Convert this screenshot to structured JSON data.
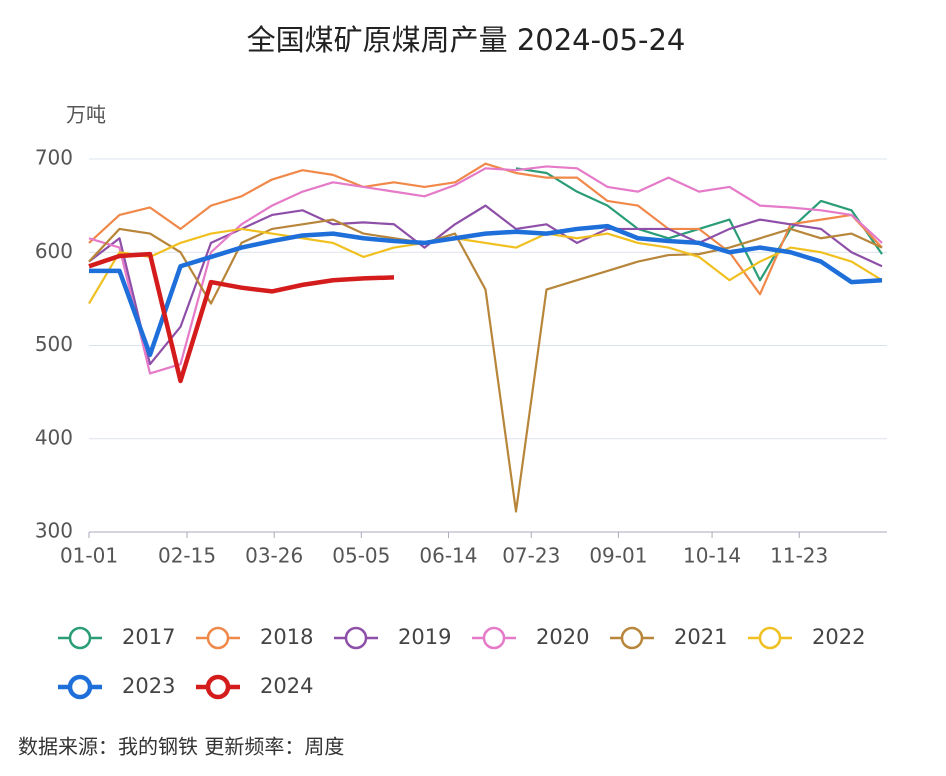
{
  "chart_data": {
    "type": "line",
    "title": "全国煤矿原煤周产量 2024-05-24",
    "y_unit": "万吨",
    "source": "数据来源：我的钢铁  更新频率：周度",
    "x": [
      0,
      14,
      28,
      42,
      56,
      70,
      84,
      98,
      112,
      126,
      140,
      154,
      168,
      182,
      196,
      210,
      224,
      238,
      252,
      266,
      280,
      294,
      308,
      322,
      336,
      350,
      364
    ],
    "xlim": [
      0,
      364
    ],
    "xticks": [
      {
        "value": 0,
        "label": "01-01"
      },
      {
        "value": 45,
        "label": "02-15"
      },
      {
        "value": 85,
        "label": "03-26"
      },
      {
        "value": 125,
        "label": "05-05"
      },
      {
        "value": 165,
        "label": "06-14"
      },
      {
        "value": 203,
        "label": "07-23"
      },
      {
        "value": 243,
        "label": "09-01"
      },
      {
        "value": 286,
        "label": "10-14"
      },
      {
        "value": 326,
        "label": "11-23"
      }
    ],
    "ylim": [
      300,
      700
    ],
    "yticks": [
      300,
      400,
      500,
      600,
      700
    ],
    "grid": true,
    "series": [
      {
        "name": "2017",
        "color": "#2a9d78",
        "values": [
          null,
          null,
          null,
          null,
          null,
          null,
          null,
          null,
          null,
          null,
          null,
          null,
          null,
          null,
          690,
          685,
          665,
          650,
          625,
          615,
          625,
          635,
          570,
          625,
          655,
          645,
          598
        ]
      },
      {
        "name": "2018",
        "color": "#f0884a",
        "values": [
          610,
          640,
          648,
          625,
          650,
          660,
          678,
          688,
          683,
          670,
          675,
          670,
          675,
          695,
          685,
          680,
          680,
          655,
          650,
          625,
          625,
          600,
          555,
          630,
          635,
          640,
          605
        ]
      },
      {
        "name": "2019",
        "color": "#8e4fa8",
        "values": [
          590,
          615,
          480,
          520,
          610,
          625,
          640,
          645,
          630,
          632,
          630,
          605,
          630,
          650,
          625,
          630,
          610,
          625,
          625,
          625,
          610,
          625,
          635,
          630,
          625,
          600,
          585
        ]
      },
      {
        "name": "2020",
        "color": "#e57ac8",
        "values": [
          615,
          605,
          470,
          480,
          600,
          630,
          650,
          665,
          675,
          670,
          665,
          660,
          672,
          690,
          688,
          692,
          690,
          670,
          665,
          680,
          665,
          670,
          650,
          648,
          645,
          640,
          610
        ]
      },
      {
        "name": "2021",
        "color": "#b8863a",
        "values": [
          590,
          625,
          620,
          600,
          545,
          610,
          625,
          630,
          635,
          620,
          615,
          610,
          620,
          560,
          322,
          560,
          570,
          580,
          590,
          597,
          598,
          605,
          615,
          625,
          615,
          620,
          605
        ]
      },
      {
        "name": "2022",
        "color": "#f0c020",
        "values": [
          545,
          600,
          595,
          610,
          620,
          625,
          620,
          615,
          610,
          595,
          605,
          610,
          615,
          610,
          605,
          620,
          615,
          620,
          610,
          605,
          595,
          570,
          590,
          605,
          600,
          590,
          570
        ]
      },
      {
        "name": "2023",
        "color": "#1e6fd9",
        "values": [
          580,
          580,
          490,
          585,
          595,
          605,
          612,
          618,
          620,
          615,
          612,
          610,
          615,
          620,
          622,
          620,
          625,
          628,
          615,
          612,
          610,
          600,
          605,
          600,
          590,
          568,
          570
        ]
      },
      {
        "name": "2024",
        "color": "#d41c1c",
        "values": [
          585,
          596,
          598,
          462,
          568,
          562,
          558,
          565,
          570,
          572,
          573,
          null,
          null,
          null,
          null,
          null,
          null,
          null,
          null,
          null,
          null,
          null,
          null,
          null,
          null,
          null,
          null
        ]
      }
    ]
  }
}
